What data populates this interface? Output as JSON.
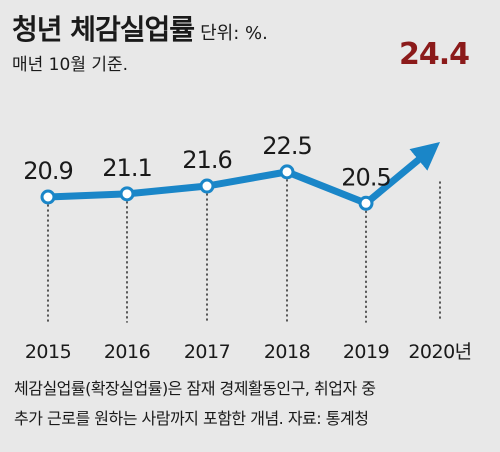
{
  "header": {
    "title": "청년 체감실업률",
    "unit": "단위: %.",
    "subtitle": "매년 10월 기준."
  },
  "footnote": {
    "line1": "체감실업률(확장실업률)은 잠재 경제활동인구, 취업자 중",
    "line2": "추가 근로를 원하는 사람까지 포함한 개념. 자료: 통계청"
  },
  "chart_data": {
    "type": "line",
    "title": "청년 체감실업률",
    "unit": "단위: %.",
    "categories": [
      "2015",
      "2016",
      "2017",
      "2018",
      "2019",
      "2020년"
    ],
    "values": [
      20.9,
      21.1,
      21.6,
      22.5,
      20.5,
      24.4
    ],
    "value_labels": [
      "20.9",
      "21.1",
      "21.6",
      "22.5",
      "20.5",
      "24.4"
    ],
    "highlight_last": true,
    "grid": "vertical dotted lines",
    "colors": {
      "line": "#1a86c8",
      "marker_fill": "#ffffff",
      "highlight_label": "#8b1a1a",
      "text": "#1a1a1a"
    }
  }
}
